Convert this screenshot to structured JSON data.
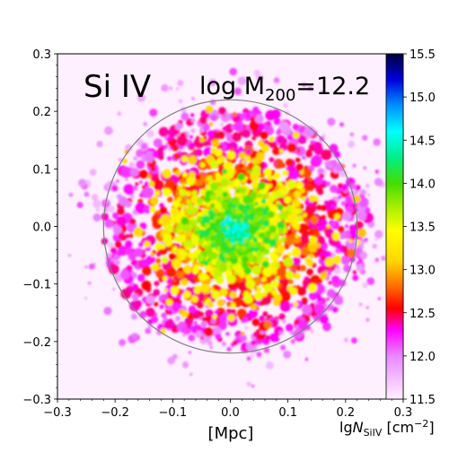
{
  "chart_data": {
    "type": "heatmap",
    "title": "",
    "annotations": {
      "ion": "Si IV",
      "mass_prefix": "log M",
      "mass_subscript": "200",
      "mass_value": "=12.2"
    },
    "xlabel": "[Mpc]",
    "ylabel": "",
    "xlim": [
      -0.3,
      0.3
    ],
    "ylim": [
      -0.3,
      0.3
    ],
    "xticks": [
      "−0.3",
      "−0.2",
      "−0.1",
      "0.0",
      "0.1",
      "0.2",
      "0.3"
    ],
    "yticks": [
      "−0.3",
      "−0.2",
      "−0.1",
      "0.0",
      "0.1",
      "0.2",
      "0.3"
    ],
    "xtick_values": [
      -0.3,
      -0.2,
      -0.1,
      0.0,
      0.1,
      0.2,
      0.3
    ],
    "ytick_values": [
      -0.3,
      -0.2,
      -0.1,
      0.0,
      0.1,
      0.2,
      0.3
    ],
    "virial_circle": {
      "center": [
        0.0,
        0.0
      ],
      "radius": 0.22
    },
    "colorbar": {
      "label_prefix": "lg",
      "label_N": "N",
      "label_sub": "SiIV",
      "label_unit": " [cm",
      "label_exp": "−2",
      "label_close": "]",
      "min": 11.5,
      "max": 15.5,
      "ticks": [
        "11.5",
        "12.0",
        "12.5",
        "13.0",
        "13.5",
        "14.0",
        "14.5",
        "15.0",
        "15.5"
      ],
      "tick_values": [
        11.5,
        12.0,
        12.5,
        13.0,
        13.5,
        14.0,
        14.5,
        15.0,
        15.5
      ],
      "stops": [
        {
          "value": 11.5,
          "color": "#fff0ff"
        },
        {
          "value": 12.0,
          "color": "#e888ff"
        },
        {
          "value": 12.3,
          "color": "#ff00ff"
        },
        {
          "value": 12.55,
          "color": "#ff0000"
        },
        {
          "value": 12.8,
          "color": "#ff6a00"
        },
        {
          "value": 13.1,
          "color": "#ffd700"
        },
        {
          "value": 13.45,
          "color": "#ffff00"
        },
        {
          "value": 13.7,
          "color": "#b0f000"
        },
        {
          "value": 14.0,
          "color": "#44dd00"
        },
        {
          "value": 14.3,
          "color": "#00ee88"
        },
        {
          "value": 14.6,
          "color": "#00ffff"
        },
        {
          "value": 14.9,
          "color": "#0090ff"
        },
        {
          "value": 15.2,
          "color": "#0000dd"
        },
        {
          "value": 15.5,
          "color": "#00003a"
        }
      ]
    },
    "background_color": "#fff0ff",
    "circle_color": "#808080"
  }
}
